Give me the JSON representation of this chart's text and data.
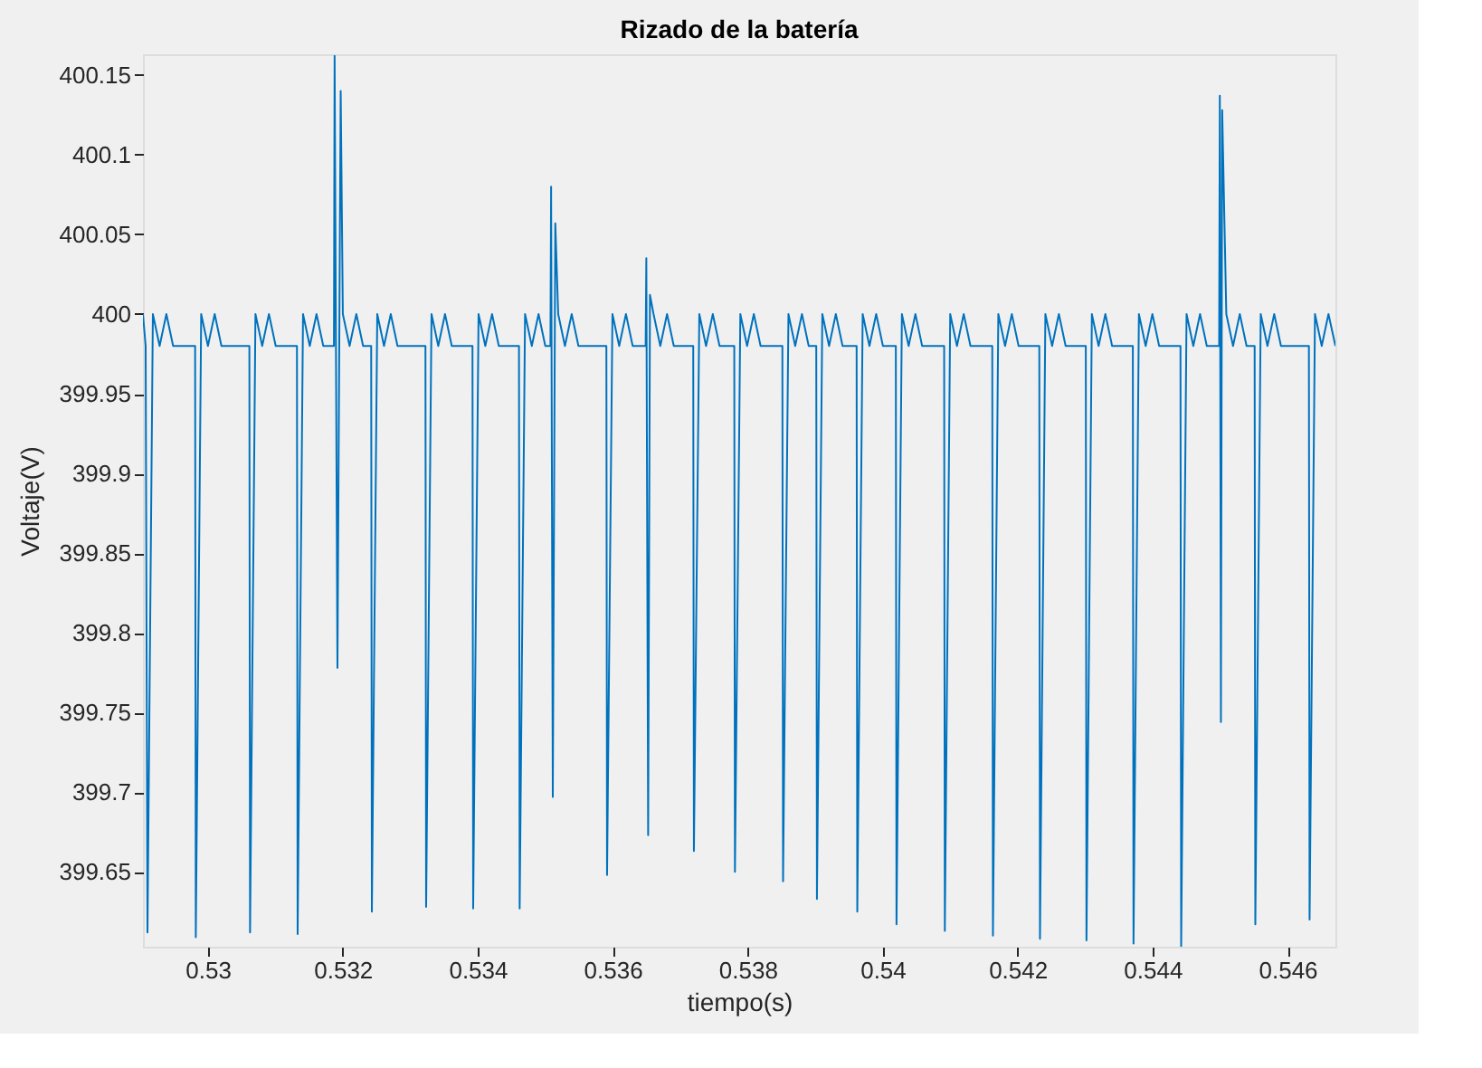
{
  "chart_data": {
    "type": "line",
    "title": "Rizado de la batería",
    "xlabel": "tiempo(s)",
    "ylabel": "Voltaje(V)",
    "xlim": [
      0.52904,
      0.54671
    ],
    "ylim": [
      399.603,
      400.163
    ],
    "xticks": [
      0.53,
      0.532,
      0.534,
      0.536,
      0.538,
      0.54,
      0.542,
      0.544,
      0.546
    ],
    "yticks": [
      399.65,
      399.7,
      399.75,
      399.8,
      399.85,
      399.9,
      399.95,
      400,
      400.05,
      400.1,
      400.15
    ],
    "grid": false,
    "series": [
      {
        "color": "#0072bd",
        "x": [
          0.52904,
          0.52908,
          0.529107,
          0.529187,
          0.529287,
          0.529387,
          0.529487,
          0.529813,
          0.529823,
          0.529903,
          0.530003,
          0.530103,
          0.530203,
          0.530617,
          0.530627,
          0.530707,
          0.530807,
          0.530907,
          0.531007,
          0.531322,
          0.531332,
          0.531412,
          0.531512,
          0.531612,
          0.531712,
          0.53187,
          0.53188,
          0.531922,
          0.53197,
          0.532002,
          0.532102,
          0.532202,
          0.532302,
          0.532422,
          0.532432,
          0.532512,
          0.532612,
          0.532712,
          0.532812,
          0.533226,
          0.533236,
          0.533316,
          0.533416,
          0.533516,
          0.533616,
          0.533923,
          0.533933,
          0.534013,
          0.534113,
          0.534213,
          0.534313,
          0.534612,
          0.534622,
          0.534702,
          0.534802,
          0.534902,
          0.535002,
          0.535078,
          0.535088,
          0.535113,
          0.53515,
          0.535193,
          0.535293,
          0.535393,
          0.535493,
          0.535907,
          0.535917,
          0.535997,
          0.536097,
          0.536197,
          0.536297,
          0.536489,
          0.536499,
          0.536526,
          0.536553,
          0.536606,
          0.536706,
          0.536806,
          0.536906,
          0.537194,
          0.537204,
          0.537284,
          0.537384,
          0.537484,
          0.537584,
          0.537802,
          0.537812,
          0.537892,
          0.537992,
          0.538092,
          0.538192,
          0.538515,
          0.538525,
          0.538605,
          0.538705,
          0.538805,
          0.538905,
          0.539017,
          0.539027,
          0.539107,
          0.539207,
          0.539307,
          0.539407,
          0.539615,
          0.539625,
          0.539705,
          0.539805,
          0.539905,
          0.540005,
          0.540196,
          0.540206,
          0.540286,
          0.540386,
          0.540486,
          0.540586,
          0.540912,
          0.540922,
          0.541002,
          0.541102,
          0.541202,
          0.541302,
          0.541625,
          0.541635,
          0.541715,
          0.541815,
          0.541915,
          0.542015,
          0.542322,
          0.542332,
          0.542412,
          0.542512,
          0.542612,
          0.542712,
          0.543011,
          0.543021,
          0.543101,
          0.543201,
          0.543301,
          0.543401,
          0.543708,
          0.543718,
          0.543798,
          0.543898,
          0.543998,
          0.544098,
          0.544414,
          0.544424,
          0.544504,
          0.544604,
          0.544704,
          0.544804,
          0.544987,
          0.544997,
          0.545013,
          0.545032,
          0.545093,
          0.545193,
          0.545293,
          0.545393,
          0.545513,
          0.545523,
          0.545603,
          0.545703,
          0.545803,
          0.545903,
          0.546317,
          0.546327,
          0.546407,
          0.546507,
          0.546607,
          0.54671
        ],
        "values": [
          400,
          399.98,
          399.612,
          400,
          399.98,
          400,
          399.98,
          399.98,
          399.609,
          400,
          399.98,
          400,
          399.98,
          399.98,
          399.612,
          400,
          399.98,
          400,
          399.98,
          399.98,
          399.611,
          400,
          399.98,
          400,
          399.98,
          399.98,
          400.162,
          399.778,
          400.14,
          400,
          399.98,
          400,
          399.98,
          399.98,
          399.625,
          400,
          399.98,
          400,
          399.98,
          399.98,
          399.628,
          400,
          399.98,
          400,
          399.98,
          399.98,
          399.627,
          400,
          399.98,
          400,
          399.98,
          399.98,
          399.627,
          400,
          399.98,
          400,
          399.98,
          399.98,
          400.08,
          399.697,
          400.057,
          400,
          399.98,
          400,
          399.98,
          399.98,
          399.648,
          400,
          399.98,
          400,
          399.98,
          399.98,
          400.035,
          399.673,
          400.012,
          400,
          399.98,
          400,
          399.98,
          399.98,
          399.663,
          400,
          399.98,
          400,
          399.98,
          399.98,
          399.65,
          400,
          399.98,
          400,
          399.98,
          399.98,
          399.644,
          400,
          399.98,
          400,
          399.98,
          399.98,
          399.633,
          400,
          399.98,
          400,
          399.98,
          399.98,
          399.625,
          400,
          399.98,
          400,
          399.98,
          399.98,
          399.617,
          400,
          399.98,
          400,
          399.98,
          399.98,
          399.613,
          400,
          399.98,
          400,
          399.98,
          399.98,
          399.61,
          400,
          399.98,
          400,
          399.98,
          399.98,
          399.608,
          400,
          399.98,
          400,
          399.98,
          399.98,
          399.607,
          400,
          399.98,
          400,
          399.98,
          399.98,
          399.605,
          400,
          399.98,
          400,
          399.98,
          399.98,
          399.603,
          400,
          399.98,
          400,
          399.98,
          399.98,
          400.137,
          399.744,
          400.128,
          400,
          399.98,
          400,
          399.98,
          399.98,
          399.617,
          400,
          399.98,
          400,
          399.98,
          399.98,
          399.62,
          400,
          399.98,
          400,
          399.98
        ]
      }
    ]
  }
}
